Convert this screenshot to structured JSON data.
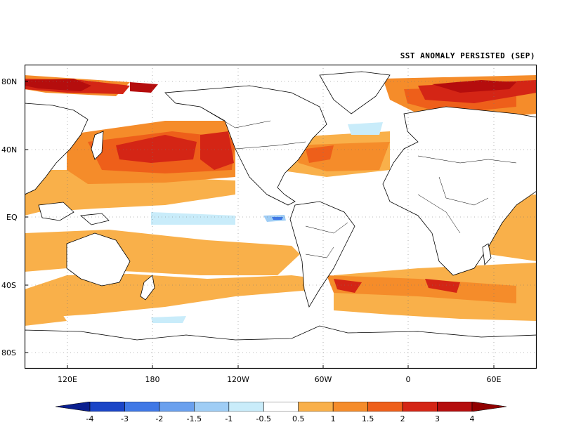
{
  "title": "SST ANOMALY PERSISTED (SEP)",
  "lat_labels": [
    "80N",
    "40N",
    "EQ",
    "40S",
    "80S"
  ],
  "lon_labels": [
    "120E",
    "180",
    "120W",
    "60W",
    "0",
    "60E"
  ],
  "colorbar": {
    "labels": [
      "-4",
      "-3",
      "-2",
      "-1.5",
      "-1",
      "-0.5",
      "0.5",
      "1",
      "1.5",
      "2",
      "3",
      "4"
    ],
    "colors": [
      "#0a1f8f",
      "#1a45c7",
      "#3f78e6",
      "#6aa0ee",
      "#9fcdf5",
      "#c9ecfa",
      "#ffffff",
      "#f9b04a",
      "#f58c2a",
      "#ee5f1a",
      "#d42515",
      "#b50d0d",
      "#900000"
    ]
  }
}
